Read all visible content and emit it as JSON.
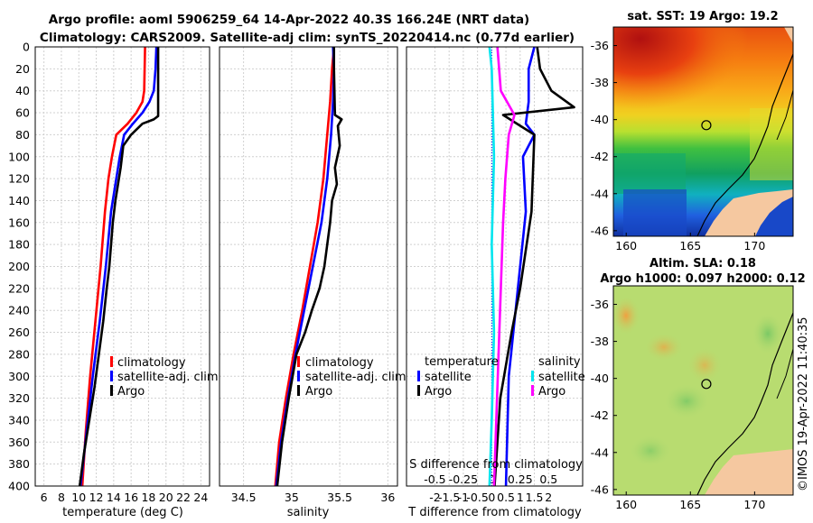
{
  "figure": {
    "title_line1": "Argo profile: aoml 5906259_64 14-Apr-2022 40.3S 166.24E (NRT data)",
    "title_line2": "Climatology: CARS2009. Satellite-adj clim: synTS_20220414.nc (0.77d earlier)",
    "credit": "©IMOS 19-Apr-2022 11:40:35"
  },
  "colors": {
    "climatology": "#ff0000",
    "satellite": "#0000ff",
    "argo": "#000000",
    "salinity_satellite": "#00e5ee",
    "salinity_argo": "#ff00ff",
    "grid": "#d0d0d0",
    "land": "#f5c8a0"
  },
  "chart_data": [
    {
      "id": "temperature",
      "type": "line",
      "xlabel": "temperature (deg C)",
      "ylabel": "depth",
      "xlim": [
        5,
        25
      ],
      "ylim": [
        400,
        0
      ],
      "xticks": [
        6,
        8,
        10,
        12,
        14,
        16,
        18,
        20,
        22,
        24
      ],
      "yticks": [
        0,
        20,
        40,
        60,
        80,
        100,
        120,
        140,
        160,
        180,
        200,
        220,
        240,
        260,
        280,
        300,
        320,
        340,
        360,
        380,
        400
      ],
      "legend": [
        "climatology",
        "satellite-adj. clim",
        "Argo"
      ],
      "series": [
        {
          "name": "climatology",
          "color": "#ff0000",
          "x": [
            17.6,
            17.5,
            17.3,
            16.6,
            15.6,
            14.3,
            13.8,
            13.4,
            13.0,
            12.5,
            11.9,
            11.3,
            10.8,
            10.4
          ],
          "depth": [
            0,
            40,
            50,
            60,
            70,
            80,
            100,
            120,
            150,
            200,
            250,
            300,
            350,
            400
          ]
        },
        {
          "name": "satellite-adj. clim",
          "color": "#0000ff",
          "x": [
            18.9,
            18.8,
            18.6,
            18.1,
            17.3,
            16.2,
            15.2,
            14.7,
            14.3,
            13.7,
            13.1,
            12.4,
            11.6,
            10.9,
            10.2
          ],
          "depth": [
            0,
            20,
            40,
            50,
            60,
            70,
            80,
            100,
            120,
            150,
            200,
            250,
            300,
            350,
            400
          ]
        },
        {
          "name": "Argo",
          "color": "#000000",
          "x": [
            19.1,
            19.1,
            19.1,
            18.6,
            17.3,
            16.0,
            15.1,
            14.8,
            14.5,
            14.2,
            13.9,
            13.7,
            13.5,
            13.2,
            12.8,
            12.3,
            11.8,
            11.2,
            10.6,
            10.1
          ],
          "depth": [
            0,
            20,
            63,
            66,
            70,
            80,
            90,
            110,
            125,
            140,
            160,
            180,
            200,
            220,
            250,
            280,
            310,
            340,
            370,
            400
          ]
        }
      ]
    },
    {
      "id": "salinity",
      "type": "line",
      "xlabel": "salinity",
      "xlim": [
        34.25,
        36.1
      ],
      "ylim": [
        400,
        0
      ],
      "xticks": [
        "34.5",
        "35",
        "35.5",
        "36"
      ],
      "legend": [
        "climatology",
        "satellite-adj. clim",
        "Argo"
      ],
      "series": [
        {
          "name": "climatology",
          "color": "#ff0000",
          "x": [
            35.44,
            35.42,
            35.4,
            35.37,
            35.33,
            35.27,
            35.19,
            35.11,
            35.02,
            34.94,
            34.87,
            34.83
          ],
          "depth": [
            0,
            20,
            50,
            80,
            120,
            160,
            200,
            240,
            280,
            320,
            360,
            400
          ]
        },
        {
          "name": "satellite-adj. clim",
          "color": "#0000ff",
          "x": [
            35.43,
            35.44,
            35.43,
            35.41,
            35.37,
            35.31,
            35.22,
            35.13,
            35.04,
            34.96,
            34.89,
            34.84
          ],
          "depth": [
            0,
            20,
            50,
            80,
            120,
            160,
            200,
            240,
            280,
            320,
            360,
            400
          ]
        },
        {
          "name": "Argo",
          "color": "#000000",
          "x": [
            35.44,
            35.44,
            35.45,
            35.52,
            35.48,
            35.5,
            35.45,
            35.47,
            35.42,
            35.4,
            35.37,
            35.34,
            35.29,
            35.21,
            35.14,
            35.05,
            34.97,
            34.9,
            34.85
          ],
          "depth": [
            0,
            20,
            62,
            66,
            72,
            90,
            110,
            125,
            140,
            160,
            180,
            200,
            220,
            240,
            260,
            280,
            320,
            360,
            400
          ]
        }
      ]
    },
    {
      "id": "difference",
      "type": "line",
      "xlabel": "T difference from climatology",
      "xlabel_top": "S difference from climatology",
      "xlim": [
        -3,
        3.2
      ],
      "ylim": [
        400,
        0
      ],
      "xticks": [
        "-2",
        "-1.5",
        "-1",
        "-0.5",
        "0",
        "0.5",
        "1",
        "1.5",
        "2"
      ],
      "xticks_values": [
        -2,
        -1.5,
        -1,
        -0.5,
        0,
        0.5,
        1,
        1.5,
        2
      ],
      "xticks_top": [
        "-0.5",
        "-0.25",
        "0",
        "0.25",
        "0.5"
      ],
      "legend_temperature": {
        "title": "temperature",
        "items": [
          "satellite",
          "Argo"
        ]
      },
      "legend_salinity": {
        "title": "salinity",
        "items": [
          "satellite",
          "Argo"
        ]
      },
      "series": [
        {
          "name": "temperature satellite",
          "color": "#0000ff",
          "x": [
            1.5,
            1.3,
            1.3,
            1.2,
            1.5,
            1.1,
            1.2,
            1.0,
            0.8,
            0.6,
            0.5
          ],
          "depth": [
            0,
            20,
            50,
            70,
            80,
            100,
            150,
            200,
            250,
            300,
            400
          ]
        },
        {
          "name": "temperature Argo",
          "color": "#000000",
          "x": [
            1.6,
            1.7,
            2.1,
            2.9,
            0.4,
            1.5,
            1.4,
            1.0,
            0.7,
            0.3,
            0.1
          ],
          "depth": [
            0,
            20,
            40,
            55,
            62,
            80,
            150,
            220,
            260,
            320,
            400
          ]
        },
        {
          "name": "salinity satellite",
          "color": "#00e5ee",
          "x": [
            -0.02,
            0.0,
            0.01,
            0.02,
            0.0,
            0.02,
            0.0,
            -0.02
          ],
          "depth": [
            0,
            20,
            60,
            100,
            180,
            260,
            340,
            400
          ]
        },
        {
          "name": "salinity Argo",
          "color": "#ff00ff",
          "x": [
            0.05,
            0.08,
            0.2,
            0.15,
            0.12,
            0.1,
            0.08,
            0.06,
            0.04,
            0.02
          ],
          "depth": [
            0,
            40,
            62,
            80,
            120,
            160,
            220,
            280,
            340,
            400
          ]
        }
      ]
    },
    {
      "id": "sst_map",
      "type": "heatmap",
      "title": "sat. SST: 19 Argo: 19.2",
      "xlim": [
        159,
        173
      ],
      "ylim": [
        -46.3,
        -35
      ],
      "xticks": [
        "160",
        "165",
        "170"
      ],
      "yticks": [
        "-36",
        "-38",
        "-40",
        "-42",
        "-44",
        "-46"
      ],
      "yticks_values": [
        -36,
        -38,
        -40,
        -42,
        -44,
        -46
      ],
      "argo_position": {
        "lon": 166.24,
        "lat": -40.3
      }
    },
    {
      "id": "sla_map",
      "type": "heatmap",
      "title_line1": "Altim. SLA: 0.18",
      "title_line2": "Argo h1000: 0.097 h2000: 0.12",
      "xlim": [
        159,
        173
      ],
      "ylim": [
        -46.3,
        -35
      ],
      "xticks": [
        "160",
        "165",
        "170"
      ],
      "yticks": [
        "-36",
        "-38",
        "-40",
        "-42",
        "-44",
        "-46"
      ],
      "yticks_values": [
        -36,
        -38,
        -40,
        -42,
        -44,
        -46
      ],
      "argo_position": {
        "lon": 166.24,
        "lat": -40.3
      }
    }
  ]
}
